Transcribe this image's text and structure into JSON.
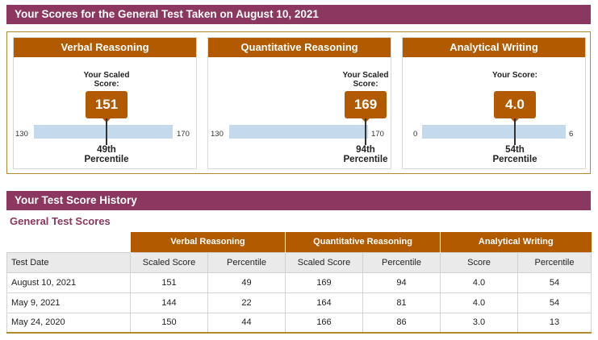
{
  "header_current": "Your Scores for the General Test Taken on August 10, 2021",
  "header_history": "Your Test Score History",
  "scaled_label_verbal": "Your Scaled Score:",
  "scaled_label_quant": "Your Scaled Score:",
  "scaled_label_writing": "Your Score:",
  "panels": [
    {
      "title": "Verbal Reasoning",
      "score": "151",
      "min": "130",
      "max": "170",
      "percentile": "49th",
      "percentile_word": "Percentile"
    },
    {
      "title": "Quantitative Reasoning",
      "score": "169",
      "min": "130",
      "max": "170",
      "percentile": "94th",
      "percentile_word": "Percentile"
    },
    {
      "title": "Analytical Writing",
      "score": "4.0",
      "min": "0",
      "max": "6",
      "percentile": "54th",
      "percentile_word": "Percentile"
    }
  ],
  "history": {
    "subtitle": "General Test Scores",
    "groups": [
      "Verbal Reasoning",
      "Quantitative Reasoning",
      "Analytical Writing"
    ],
    "columns": [
      "Test Date",
      "Scaled Score",
      "Percentile",
      "Scaled Score",
      "Percentile",
      "Score",
      "Percentile"
    ],
    "rows": [
      [
        "August 10, 2021",
        "151",
        "49",
        "169",
        "94",
        "4.0",
        "54"
      ],
      [
        "May 9, 2021",
        "144",
        "22",
        "164",
        "81",
        "4.0",
        "54"
      ],
      [
        "May 24, 2020",
        "150",
        "44",
        "166",
        "86",
        "3.0",
        "13"
      ]
    ]
  },
  "colors": {
    "header": "#8b3760",
    "accent": "#b15a00",
    "bar": "#c5d9ec"
  }
}
